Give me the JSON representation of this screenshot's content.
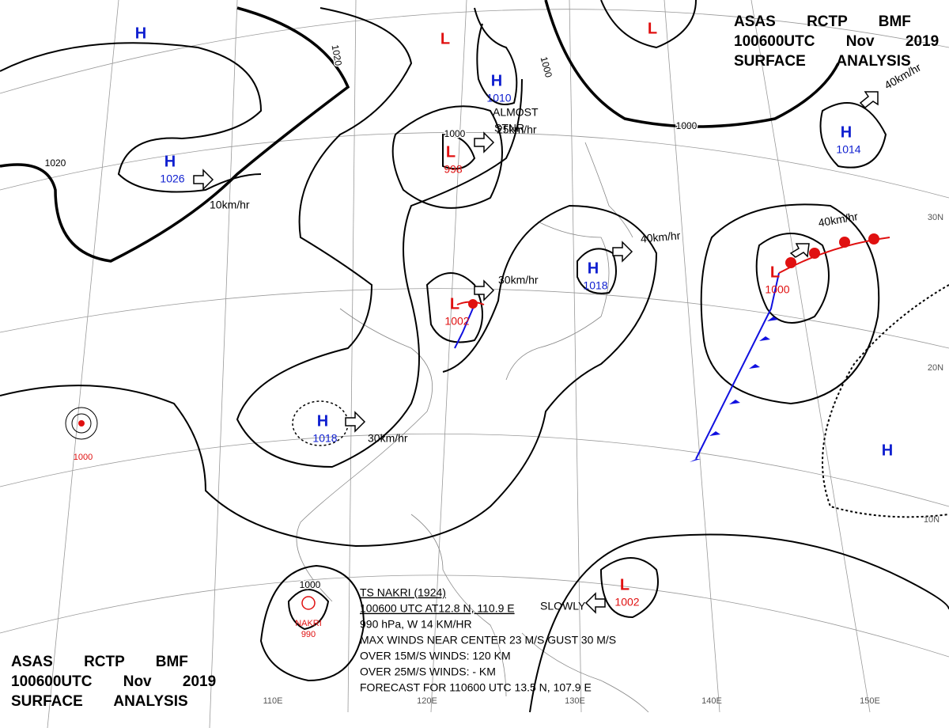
{
  "header_top": {
    "line1": "ASAS RCTP BMF",
    "line2": "100600UTC Nov 2019",
    "line3": "SURFACE ANALYSIS"
  },
  "header_bottom": {
    "line1": "ASAS RCTP BMF",
    "line2": "100600UTC Nov 2019",
    "line3": "SURFACE ANALYSIS"
  },
  "pressure_systems": [
    {
      "symbol": "H"
    },
    {
      "symbol": "L"
    },
    {
      "symbol": "L"
    },
    {
      "symbol": "H",
      "pressure": 1010
    },
    {
      "symbol": "H",
      "pressure": 1026
    },
    {
      "symbol": "L",
      "pressure": 998
    },
    {
      "symbol": "H",
      "pressure": 1014
    },
    {
      "symbol": "H",
      "pressure": 1018
    },
    {
      "symbol": "L",
      "pressure": 1002
    },
    {
      "symbol": "L",
      "pressure": 1000
    },
    {
      "symbol": "H",
      "pressure": 1018
    },
    {
      "symbol": "H"
    },
    {
      "symbol": "L",
      "pressure": 1002
    }
  ],
  "tropical_depression": {
    "pressure": 1000
  },
  "typhoon": {
    "name": "NAKRI",
    "pressure": 990
  },
  "isobar_labels": [
    1020,
    1020,
    1000,
    1000,
    1000,
    1000
  ],
  "movement_labels": [
    "10km/hr",
    "ALMOST",
    "STNR",
    "25km/hr",
    "40km/hr",
    "40km/hr",
    "30km/hr",
    "40km/hr",
    "30km/hr",
    "SLOWLY"
  ],
  "storm_info": [
    "TS NAKRI (1924)",
    "100600 UTC AT12.8 N, 110.9 E",
    "990 hPa, W 14 KM/HR",
    "MAX WINDS NEAR CENTER 23 M/S GUST 30 M/S",
    "OVER 15M/S WINDS: 120 KM",
    "OVER 25M/S WINDS: - KM",
    "FORECAST FOR 110600 UTC 13.5 N, 107.9 E"
  ],
  "lat_labels": [
    "30N",
    "20N",
    "10N"
  ],
  "lon_labels": [
    "110E",
    "120E",
    "130E",
    "140E",
    "150E"
  ]
}
